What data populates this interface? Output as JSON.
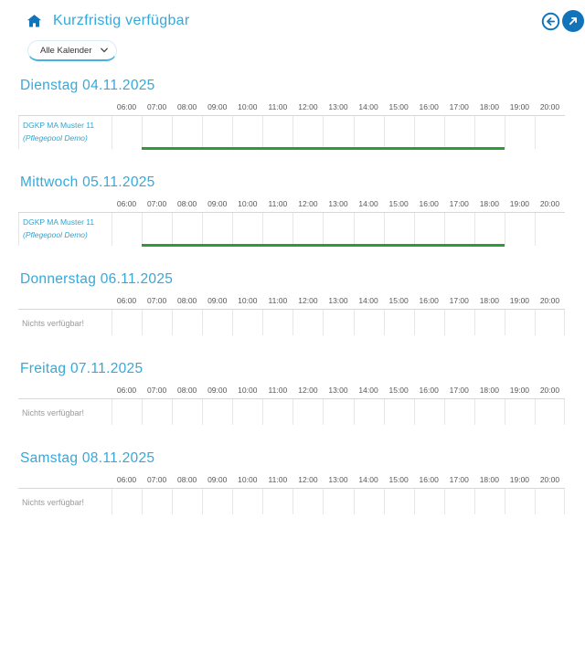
{
  "header": {
    "title": "Kurzfristig verfügbar"
  },
  "filter": {
    "selected_option": "Alle Kalender"
  },
  "icons": {
    "home": "home-icon",
    "back": "arrow-left-circle-icon",
    "share": "diagonal-arrow-circle-icon",
    "dropdown": "chevron-down-icon"
  },
  "colors": {
    "accent_blue": "#35a9da",
    "icon_blue": "#1173b9",
    "label_teal": "#31a3cd",
    "available_green": "#2f9b38",
    "grid_line": "#e7e7e7",
    "muted_text": "#9a9a9a"
  },
  "timeline": {
    "axis_start_hour": 6,
    "axis_total_hours": 15,
    "hours": [
      "06:00",
      "07:00",
      "08:00",
      "09:00",
      "10:00",
      "11:00",
      "12:00",
      "13:00",
      "14:00",
      "15:00",
      "16:00",
      "17:00",
      "18:00",
      "19:00",
      "20:00"
    ]
  },
  "days": [
    {
      "title": "Dienstag 04.11.2025",
      "rows": [
        {
          "type": "staff",
          "label": "DGKP MA Muster 11",
          "sublabel": "(Pflegepool Demo)",
          "availability": {
            "start": "07:00",
            "end": "19:00"
          }
        }
      ]
    },
    {
      "title": "Mittwoch 05.11.2025",
      "rows": [
        {
          "type": "staff",
          "label": "DGKP MA Muster 11",
          "sublabel": "(Pflegepool Demo)",
          "availability": {
            "start": "07:00",
            "end": "19:00"
          }
        }
      ]
    },
    {
      "title": "Donnerstag 06.11.2025",
      "rows": [
        {
          "type": "empty",
          "label": "Nichts verfügbar!"
        }
      ]
    },
    {
      "title": "Freitag 07.11.2025",
      "rows": [
        {
          "type": "empty",
          "label": "Nichts verfügbar!"
        }
      ]
    },
    {
      "title": "Samstag 08.11.2025",
      "rows": [
        {
          "type": "empty",
          "label": "Nichts verfügbar!"
        }
      ]
    }
  ]
}
